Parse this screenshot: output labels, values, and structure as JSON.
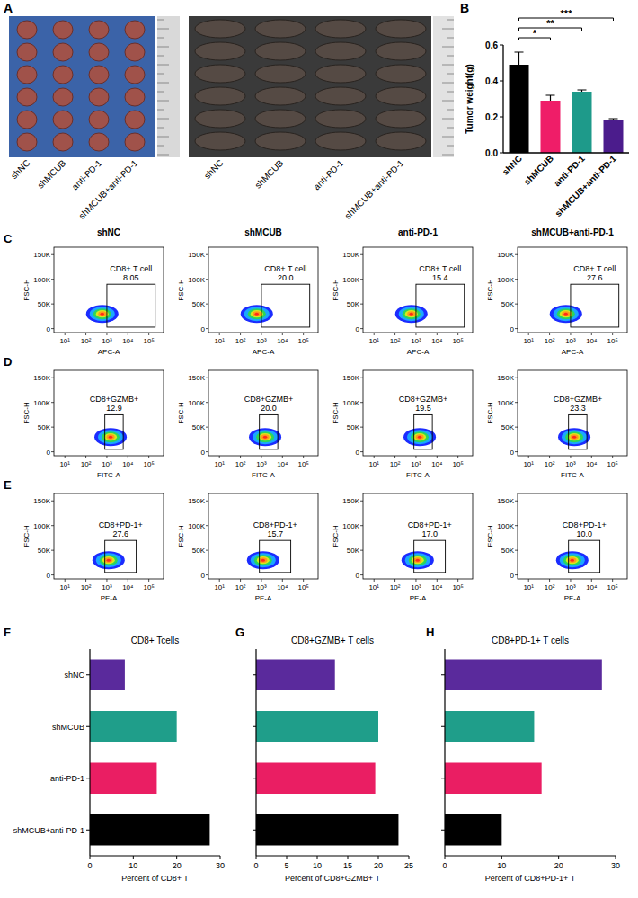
{
  "chart_data": [
    {
      "panel": "A",
      "type": "image",
      "groups": [
        "shNC",
        "shMCUB",
        "anti-PD-1",
        "shMCUB+anti-PD-1"
      ]
    },
    {
      "panel": "B",
      "type": "bar",
      "y_label": "Tumor weight(g)",
      "categories": [
        "shNC",
        "shMCUB",
        "anti-PD-1",
        "shMCUB+anti-PD-1"
      ],
      "values": [
        0.49,
        0.29,
        0.34,
        0.18
      ],
      "errors": [
        0.07,
        0.03,
        0.01,
        0.01
      ],
      "colors": [
        "#000000",
        "#ef1d68",
        "#1e9a8a",
        "#4b1c8c"
      ],
      "ylim": [
        0,
        0.6
      ],
      "yticks": [
        {
          "value": 0,
          "label": "0.0"
        },
        0.2,
        0.4,
        0.6
      ],
      "significance": [
        {
          "from": 0,
          "to": 1,
          "label": "*"
        },
        {
          "from": 0,
          "to": 2,
          "label": "**"
        },
        {
          "from": 0,
          "to": 3,
          "label": "***"
        }
      ]
    },
    {
      "panel": "C",
      "type": "scatter",
      "categories": [
        "shNC",
        "shMCUB",
        "anti-PD-1",
        "shMCUB+anti-PD-1"
      ],
      "x_label": "APC-A",
      "y_label": "FSC-H",
      "gate_label": "CD8+ T cell",
      "gate_values": [
        "8.05",
        "20.0",
        "15.4",
        "27.6"
      ],
      "gate": {
        "x": [
          1000,
          200000
        ],
        "y": [
          3000,
          90000
        ]
      },
      "population": {
        "x": 600,
        "y": 30000
      },
      "log": "x",
      "xlim": [
        3,
        500000
      ],
      "ylim": [
        -8000,
        165000
      ],
      "xticks": [
        {
          "value": 10,
          "label": "10¹"
        },
        {
          "value": 100,
          "label": "10²"
        },
        {
          "value": 1000,
          "label": "10³"
        },
        {
          "value": 10000,
          "label": "10⁴"
        },
        {
          "value": 100000,
          "label": "10⁵"
        }
      ],
      "yticks": [
        0,
        {
          "value": 50000,
          "label": "50K"
        },
        {
          "value": 100000,
          "label": "100K"
        },
        {
          "value": 150000,
          "label": "150K"
        }
      ]
    },
    {
      "panel": "D",
      "type": "scatter",
      "x_label": "FITC-A",
      "y_label": "FSC-H",
      "gate_label": "CD8+GZMB+",
      "gate_values": [
        "12.9",
        "20.0",
        "19.5",
        "23.3"
      ],
      "gate": {
        "x": [
          800,
          6000
        ],
        "y": [
          5000,
          75000
        ]
      },
      "population": {
        "x": 1500,
        "y": 30000
      },
      "log": "x",
      "xlim": [
        3,
        500000
      ],
      "ylim": [
        -8000,
        165000
      ],
      "xticks": [
        {
          "value": 10,
          "label": "10¹"
        },
        {
          "value": 100,
          "label": "10²"
        },
        {
          "value": 1000,
          "label": "10³"
        },
        {
          "value": 10000,
          "label": "10⁴"
        },
        {
          "value": 100000,
          "label": "10⁵"
        }
      ],
      "yticks": [
        0,
        {
          "value": 50000,
          "label": "50K"
        },
        {
          "value": 100000,
          "label": "100K"
        },
        {
          "value": 150000,
          "label": "150K"
        }
      ]
    },
    {
      "panel": "E",
      "type": "scatter",
      "x_label": "PE-A",
      "y_label": "FSC-H",
      "gate_label": "CD8+PD-1+",
      "gate_values": [
        "27.6",
        "15.7",
        "17.0",
        "10.0"
      ],
      "gate": {
        "x": [
          800,
          25000
        ],
        "y": [
          5000,
          70000
        ]
      },
      "population": {
        "x": 1200,
        "y": 30000
      },
      "log": "x",
      "xlim": [
        3,
        500000
      ],
      "ylim": [
        -8000,
        165000
      ],
      "xticks": [
        {
          "value": 10,
          "label": "10¹"
        },
        {
          "value": 100,
          "label": "10²"
        },
        {
          "value": 1000,
          "label": "10³"
        },
        {
          "value": 10000,
          "label": "10⁴"
        },
        {
          "value": 100000,
          "label": "10⁵"
        }
      ],
      "yticks": [
        0,
        {
          "value": 50000,
          "label": "50K"
        },
        {
          "value": 100000,
          "label": "100K"
        },
        {
          "value": 150000,
          "label": "150K"
        }
      ]
    },
    {
      "panel": "F",
      "type": "bar",
      "orientation": "horizontal",
      "title": "CD8+ Tcells",
      "x_label": "Percent of CD8+ T",
      "categories": [
        "shNC",
        "shMCUB",
        "anti-PD-1",
        "shMCUB+anti-PD-1"
      ],
      "values": [
        8.05,
        20.0,
        15.4,
        27.6
      ],
      "colors": [
        "#5a2a9c",
        "#1f9e8a",
        "#ea1e63",
        "#000000"
      ],
      "xlim": [
        0,
        30
      ],
      "xticks": [
        0,
        10,
        20,
        30
      ]
    },
    {
      "panel": "G",
      "type": "bar",
      "orientation": "horizontal",
      "title": "CD8+GZMB+ T cells",
      "x_label": "Percent of CD8+GZMB+ T",
      "categories": [
        null,
        null,
        null,
        null
      ],
      "values": [
        12.9,
        20.0,
        19.5,
        23.3
      ],
      "colors": [
        "#5a2a9c",
        "#1f9e8a",
        "#ea1e63",
        "#000000"
      ],
      "xlim": [
        0,
        25
      ],
      "xticks": [
        0,
        5,
        10,
        15,
        20,
        25
      ],
      "tick_labels": "x"
    },
    {
      "panel": "H",
      "type": "bar",
      "orientation": "horizontal",
      "title": "CD8+PD-1+ T cells",
      "x_label": "Percent of CD8+PD-1+ T",
      "categories": [
        null,
        null,
        null,
        null
      ],
      "values": [
        27.6,
        15.7,
        17.0,
        10.0
      ],
      "colors": [
        "#5a2a9c",
        "#1f9e8a",
        "#ea1e63",
        "#000000"
      ],
      "xlim": [
        0,
        30
      ],
      "xticks": [
        0,
        10,
        20,
        30
      ],
      "tick_labels": "x"
    }
  ]
}
